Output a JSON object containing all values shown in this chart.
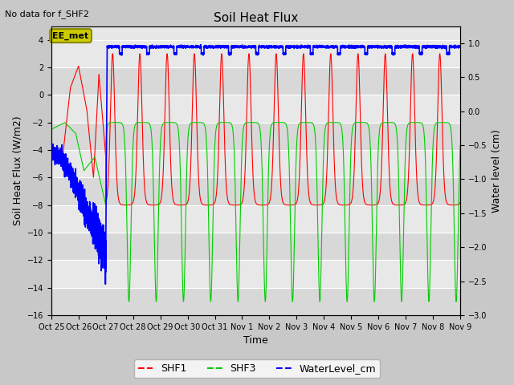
{
  "title": "Soil Heat Flux",
  "note": "No data for f_SHF2",
  "ylabel_left": "Soil Heat Flux (W/m2)",
  "ylabel_right": "Water level (cm)",
  "xlabel": "Time",
  "ylim_left": [
    -16,
    5
  ],
  "ylim_right": [
    -3.0,
    1.25
  ],
  "yticks_left": [
    -16,
    -14,
    -12,
    -10,
    -8,
    -6,
    -4,
    -2,
    0,
    2,
    4
  ],
  "yticks_right": [
    -3.0,
    -2.5,
    -2.0,
    -1.5,
    -1.0,
    -0.5,
    0.0,
    0.5,
    1.0
  ],
  "xtick_labels": [
    "Oct 25",
    "Oct 26",
    "Oct 27",
    "Oct 28",
    "Oct 29",
    "Oct 30",
    "Oct 31",
    "Nov 1",
    "Nov 2",
    "Nov 3",
    "Nov 4",
    "Nov 5",
    "Nov 6",
    "Nov 7",
    "Nov 8",
    "Nov 9"
  ],
  "fig_bg": "#c8c8c8",
  "plot_bg": "#e8e8e8",
  "stripe_color": "#d8d8d8",
  "shf1_color": "#ff0000",
  "shf3_color": "#00cc00",
  "water_color": "#0000ff",
  "annotation_text": "EE_met",
  "annotation_bg": "#cccc00",
  "annotation_edge": "#888800",
  "grid_color": "#ffffff",
  "title_fontsize": 11,
  "label_fontsize": 9,
  "tick_fontsize": 7,
  "legend_fontsize": 9
}
